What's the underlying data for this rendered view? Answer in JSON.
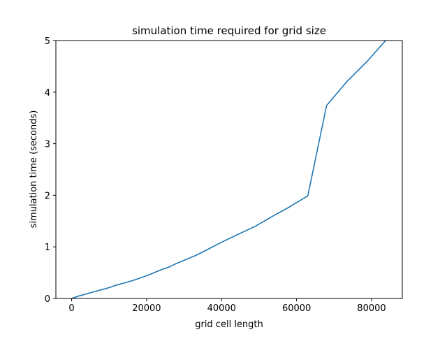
{
  "chart_data": {
    "type": "line",
    "title": "simulation time required for grid size",
    "xlabel": "grid cell length",
    "ylabel": "simulation time (seconds)",
    "xlim": [
      -4200,
      88200
    ],
    "ylim": [
      0,
      5
    ],
    "xticks": [
      0,
      20000,
      40000,
      60000,
      80000
    ],
    "xtick_labels": [
      "0",
      "20000",
      "40000",
      "60000",
      "80000"
    ],
    "yticks": [
      0,
      1,
      2,
      3,
      4,
      5
    ],
    "ytick_labels": [
      "0",
      "1",
      "2",
      "3",
      "4",
      "5"
    ],
    "grid": false,
    "line_color": "#1f77b4",
    "series": [
      {
        "x": [
          0,
          2000,
          4000,
          6000,
          8000,
          10000,
          12000,
          14000,
          16000,
          18000,
          20000,
          22000,
          24000,
          26000,
          28000,
          30000,
          33000,
          36000,
          40000,
          44000,
          49000,
          54000,
          58000,
          63000,
          68000,
          73500,
          79000,
          84000
        ],
        "y": [
          0.0,
          0.05,
          0.09,
          0.13,
          0.17,
          0.21,
          0.26,
          0.3,
          0.34,
          0.39,
          0.44,
          0.5,
          0.56,
          0.61,
          0.68,
          0.74,
          0.83,
          0.94,
          1.09,
          1.23,
          1.4,
          1.61,
          1.77,
          1.99,
          3.74,
          4.21,
          4.61,
          5.02
        ]
      }
    ]
  }
}
